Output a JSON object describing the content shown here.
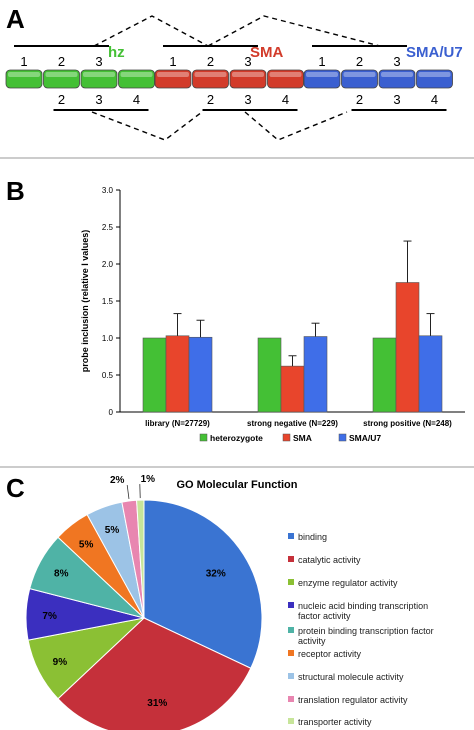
{
  "panel_a": {
    "letter": "A",
    "groups": [
      {
        "label": "hz",
        "color": "#44c035",
        "top_numbers": [
          "1",
          "2",
          "3"
        ],
        "bottom_numbers": [
          "2",
          "3",
          "4"
        ]
      },
      {
        "label": "SMA",
        "color": "#d23b2a",
        "top_numbers": [
          "1",
          "2",
          "3"
        ],
        "bottom_numbers": [
          "2",
          "3",
          "4"
        ]
      },
      {
        "label": "SMA/U7",
        "color": "#3a5fd0",
        "top_numbers": [
          "1",
          "2",
          "3"
        ],
        "bottom_numbers": [
          "2",
          "3",
          "4"
        ]
      }
    ]
  },
  "panel_b": {
    "letter": "B"
  },
  "panel_c": {
    "letter": "C"
  },
  "chart_data": [
    {
      "type": "bar",
      "title": "",
      "ylabel": "probe inclusion (relative I values)",
      "xlabel": "",
      "ylim": [
        0,
        3.0
      ],
      "yticks": [
        "0",
        "0.5",
        "1.0",
        "1.5",
        "2.0",
        "2.5",
        "3.0"
      ],
      "categories": [
        "library (N=27729)",
        "strong negative (N=229)",
        "strong positive (N=248)"
      ],
      "series": [
        {
          "name": "heterozygote",
          "color": "#44c035",
          "values": [
            1.0,
            1.0,
            1.0
          ],
          "errors": [
            0,
            0,
            0
          ]
        },
        {
          "name": "SMA",
          "color": "#e8452c",
          "values": [
            1.03,
            0.62,
            1.75
          ],
          "errors": [
            0.3,
            0.14,
            0.56
          ]
        },
        {
          "name": "SMA/U7",
          "color": "#3f6ee8",
          "values": [
            1.01,
            1.02,
            1.03
          ],
          "errors": [
            0.23,
            0.18,
            0.3
          ]
        }
      ],
      "grid": false,
      "legend": "bottom"
    },
    {
      "type": "pie",
      "title": "GO Molecular Function",
      "slices": [
        {
          "label": "binding",
          "value": 32,
          "text": "32%",
          "color": "#3a74d2"
        },
        {
          "label": "catalytic activity",
          "value": 31,
          "text": "31%",
          "color": "#c5303a"
        },
        {
          "label": "enzyme regulator activity",
          "value": 9,
          "text": "9%",
          "color": "#8bc034"
        },
        {
          "label": "nucleic acid binding transcription factor activity",
          "value": 7,
          "text": "7%",
          "color": "#3b2fbf"
        },
        {
          "label": "protein binding transcription factor activity",
          "value": 8,
          "text": "8%",
          "color": "#4fb3a6"
        },
        {
          "label": "receptor activity",
          "value": 5,
          "text": "5%",
          "color": "#f07622"
        },
        {
          "label": "structural molecule activity",
          "value": 5,
          "text": "5%",
          "color": "#9cc3e6"
        },
        {
          "label": "translation regulator activity",
          "value": 2,
          "text": "2%",
          "color": "#e886b0"
        },
        {
          "label": "transporter activity",
          "value": 1,
          "text": "1%",
          "color": "#c7e59a"
        }
      ],
      "legend": "right"
    }
  ]
}
